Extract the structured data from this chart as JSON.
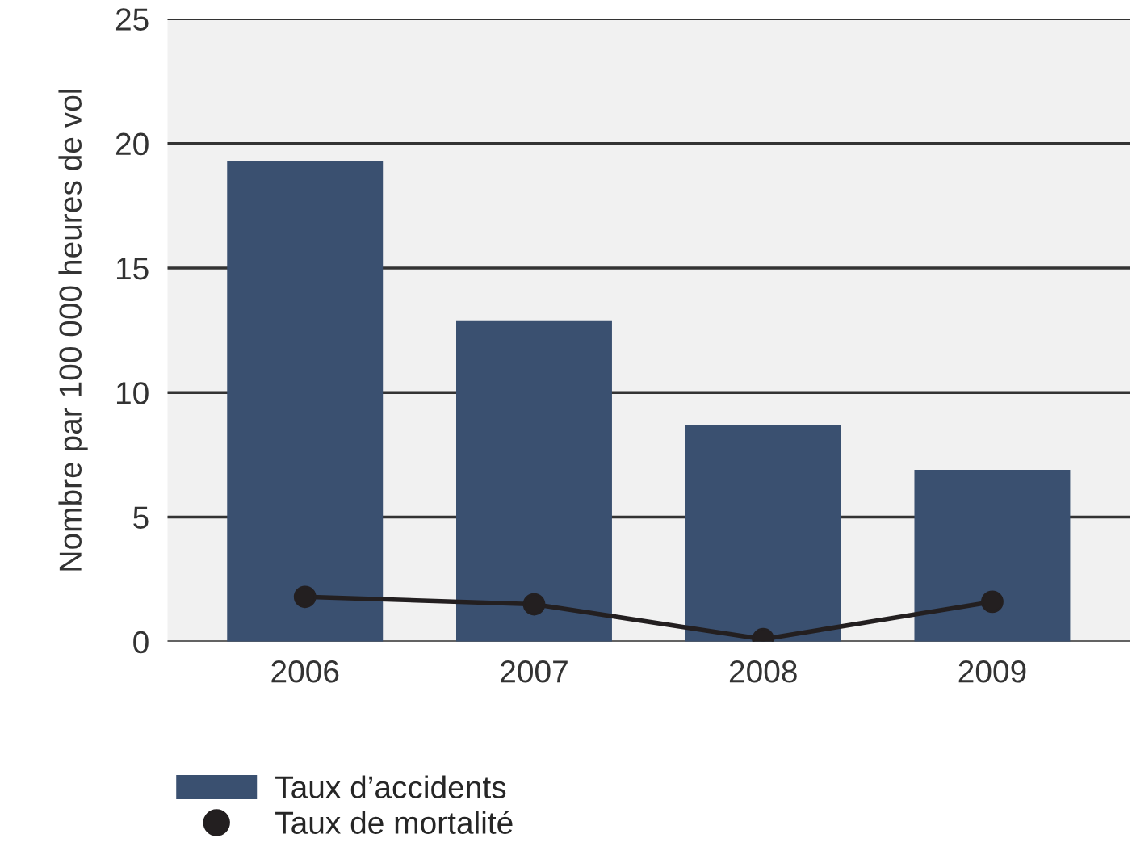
{
  "chart_data": {
    "type": "bar",
    "ylabel": "Nombre par 100 000 heures de vol",
    "categories": [
      "2006",
      "2007",
      "2008",
      "2009"
    ],
    "series": [
      {
        "name": "Taux d’accidents",
        "color": "#3a5070",
        "values": [
          19.3,
          12.9,
          8.7,
          6.9
        ]
      },
      {
        "name": "Taux de mortalité",
        "type": "line",
        "color": "#231f20",
        "values": [
          1.8,
          1.5,
          0.1,
          1.6
        ]
      }
    ],
    "ylim": [
      0,
      25
    ],
    "yticks": [
      0,
      5,
      10,
      15,
      20,
      25
    ],
    "grid": "y",
    "legend": "bottom left",
    "marker": "circle",
    "line_style": "solid"
  }
}
